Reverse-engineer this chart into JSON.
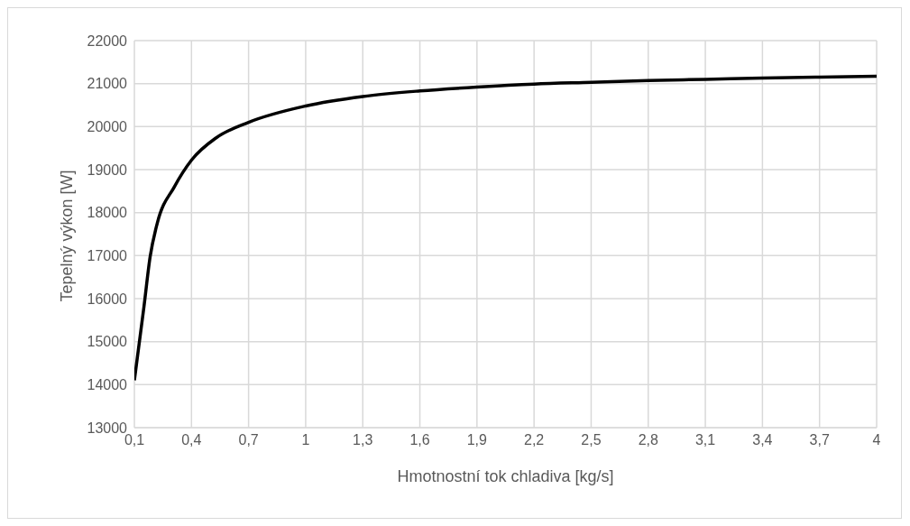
{
  "chart_data": {
    "type": "line",
    "xlabel": "Hmotnostní tok chladiva [kg/s]",
    "ylabel": "Tepelný výkon [W]",
    "x": [
      0.1,
      0.15,
      0.183,
      0.22,
      0.31,
      0.4,
      0.53,
      0.7,
      1,
      1.3,
      1.6,
      1.9,
      2.2,
      2.5,
      2.8,
      3.1,
      3.4,
      3.7,
      4
    ],
    "series": [
      {
        "color": "#000000",
        "values": [
          14100,
          15800,
          16980,
          17750,
          18600,
          19220,
          19740,
          20100,
          20480,
          20700,
          20830,
          20920,
          20990,
          21030,
          21070,
          21100,
          21130,
          21150,
          21170
        ]
      }
    ],
    "xlim": [
      0.1,
      4
    ],
    "xticks": [
      {
        "value": 0.1,
        "label": "0,1"
      },
      {
        "value": 0.4,
        "label": "0,4"
      },
      {
        "value": 0.7,
        "label": "0,7"
      },
      {
        "value": 1,
        "label": "1"
      },
      {
        "value": 1.3,
        "label": "1,3"
      },
      {
        "value": 1.6,
        "label": "1,6"
      },
      {
        "value": 1.9,
        "label": "1,9"
      },
      {
        "value": 2.2,
        "label": "2,2"
      },
      {
        "value": 2.5,
        "label": "2,5"
      },
      {
        "value": 2.8,
        "label": "2,8"
      },
      {
        "value": 3.1,
        "label": "3,1"
      },
      {
        "value": 3.4,
        "label": "3,4"
      },
      {
        "value": 3.7,
        "label": "3,7"
      },
      {
        "value": 4,
        "label": "4"
      }
    ],
    "ylim": [
      13000,
      22000
    ],
    "yticks": [
      13000,
      14000,
      15000,
      16000,
      17000,
      18000,
      19000,
      20000,
      21000,
      22000
    ],
    "grid": true,
    "legend": false,
    "marker": "none",
    "line_style": "solid"
  }
}
